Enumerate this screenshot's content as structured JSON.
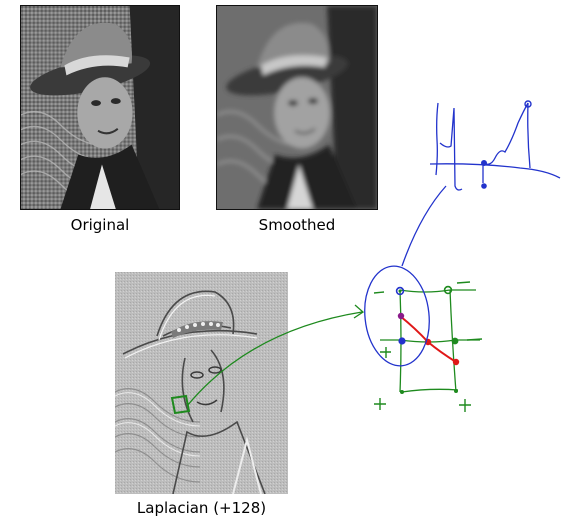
{
  "captions": {
    "original": "Original",
    "smoothed": "Smoothed",
    "laplacian": "Laplacian (+128)"
  },
  "annotation_signs": [
    "-",
    "-",
    "+",
    "-",
    "+",
    "+"
  ],
  "colors": {
    "sketch_blue": "#2233cc",
    "sketch_green": "#1e8a1e",
    "sketch_red": "#e01818",
    "sketch_purple": "#8a1a8a"
  }
}
